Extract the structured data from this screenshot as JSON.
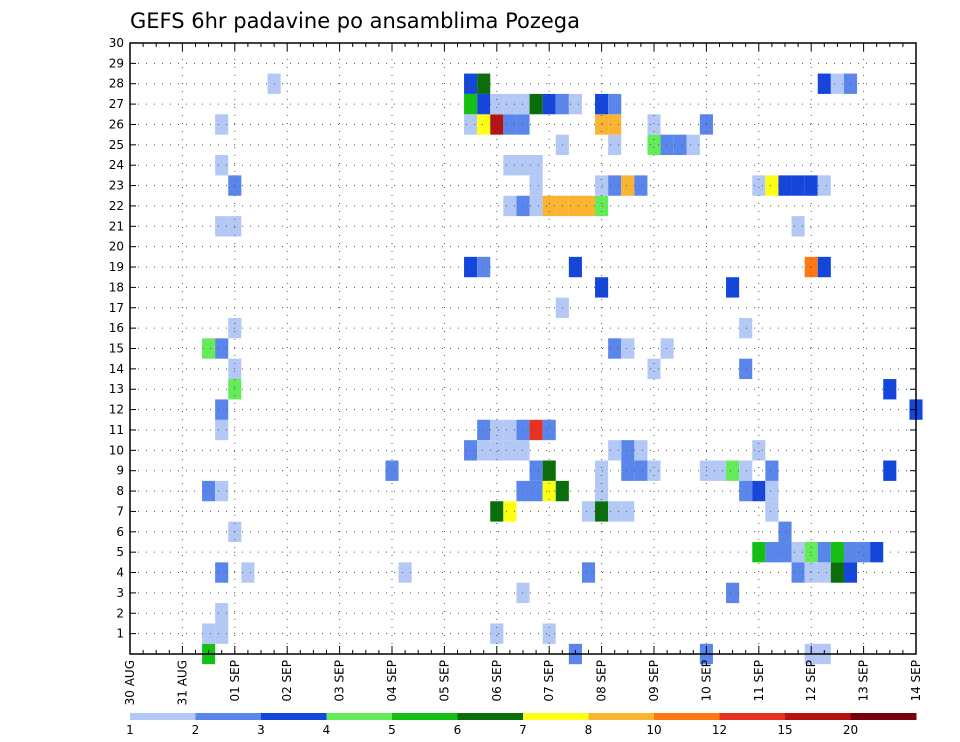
{
  "chart_data": {
    "type": "heatmap",
    "title": "GEFS 6hr padavine po ansamblima Pozega",
    "xlabel": "",
    "ylabel": "",
    "x_tick_labels": [
      "30 AUG",
      "31 AUG",
      "01 SEP",
      "02 SEP",
      "03 SEP",
      "04 SEP",
      "05 SEP",
      "06 SEP",
      "07 SEP",
      "08 SEP",
      "09 SEP",
      "10 SEP",
      "11 SEP",
      "12 SEP",
      "13 SEP",
      "14 SEP"
    ],
    "y_tick_labels": [
      "1",
      "2",
      "3",
      "4",
      "5",
      "6",
      "7",
      "8",
      "9",
      "10",
      "11",
      "12",
      "13",
      "14",
      "15",
      "16",
      "17",
      "18",
      "19",
      "20",
      "21",
      "22",
      "23",
      "24",
      "25",
      "26",
      "27",
      "28",
      "29",
      "30"
    ],
    "xlim_steps": [
      0,
      60
    ],
    "ylim_members": [
      0,
      30
    ],
    "grid": true,
    "colorbar": {
      "position": "bottom",
      "boundaries": [
        "1",
        "2",
        "3",
        "4",
        "5",
        "6",
        "7",
        "8",
        "10",
        "12",
        "15",
        "20"
      ],
      "colors": [
        "#b4c8f5",
        "#5a86eb",
        "#1446dc",
        "#64ec58",
        "#14c014",
        "#0a6e0a",
        "#ffff14",
        "#fab432",
        "#ff7814",
        "#e6321e",
        "#b41414",
        "#78000a"
      ]
    },
    "cells_note": "each cell = [time_step (6h steps from 30 AUG 00z), ensemble_member, color_class_index 0-10]",
    "cells": [
      [
        6,
        0,
        4
      ],
      [
        6,
        1,
        0
      ],
      [
        7,
        1,
        0
      ],
      [
        7,
        2,
        0
      ],
      [
        7,
        4,
        1
      ],
      [
        9,
        4,
        0
      ],
      [
        8,
        6,
        0
      ],
      [
        6,
        8,
        1
      ],
      [
        7,
        8,
        0
      ],
      [
        7,
        11,
        0
      ],
      [
        7,
        12,
        1
      ],
      [
        8,
        13,
        3
      ],
      [
        8,
        14,
        0
      ],
      [
        6,
        15,
        3
      ],
      [
        7,
        15,
        1
      ],
      [
        8,
        16,
        0
      ],
      [
        7,
        21,
        0
      ],
      [
        8,
        21,
        0
      ],
      [
        8,
        23,
        1
      ],
      [
        7,
        24,
        0
      ],
      [
        7,
        26,
        0
      ],
      [
        11,
        28,
        0
      ],
      [
        21,
        4,
        0
      ],
      [
        20,
        9,
        1
      ],
      [
        30,
        3,
        0
      ],
      [
        28,
        1,
        0
      ],
      [
        32,
        1,
        0
      ],
      [
        33,
        17,
        0
      ],
      [
        33,
        25,
        0
      ],
      [
        34,
        0,
        1
      ],
      [
        35,
        4,
        1
      ],
      [
        44,
        0,
        1
      ],
      [
        47,
        14,
        1
      ],
      [
        50,
        6,
        1
      ],
      [
        27,
        11,
        1
      ],
      [
        28,
        11,
        0
      ],
      [
        29,
        11,
        0
      ],
      [
        30,
        11,
        1
      ],
      [
        31,
        11,
        9
      ],
      [
        32,
        11,
        1
      ],
      [
        26,
        10,
        1
      ],
      [
        27,
        10,
        0
      ],
      [
        28,
        10,
        0
      ],
      [
        29,
        10,
        0
      ],
      [
        30,
        10,
        0
      ],
      [
        28,
        7,
        5
      ],
      [
        29,
        7,
        6
      ],
      [
        30,
        8,
        1
      ],
      [
        31,
        8,
        1
      ],
      [
        32,
        8,
        6
      ],
      [
        33,
        8,
        5
      ],
      [
        31,
        9,
        1
      ],
      [
        32,
        9,
        5
      ],
      [
        35,
        7,
        0
      ],
      [
        36,
        7,
        5
      ],
      [
        37,
        7,
        0
      ],
      [
        38,
        7,
        0
      ],
      [
        38,
        10,
        1
      ],
      [
        39,
        10,
        0
      ],
      [
        38,
        9,
        1
      ],
      [
        39,
        9,
        1
      ],
      [
        40,
        9,
        0
      ],
      [
        36,
        8,
        0
      ],
      [
        36,
        9,
        0
      ],
      [
        37,
        10,
        0
      ],
      [
        37,
        15,
        1
      ],
      [
        38,
        15,
        0
      ],
      [
        40,
        14,
        0
      ],
      [
        41,
        15,
        0
      ],
      [
        44,
        9,
        0
      ],
      [
        45,
        9,
        0
      ],
      [
        46,
        9,
        3
      ],
      [
        47,
        9,
        0
      ],
      [
        47,
        8,
        1
      ],
      [
        48,
        8,
        2
      ],
      [
        48,
        10,
        0
      ],
      [
        49,
        7,
        0
      ],
      [
        49,
        8,
        0
      ],
      [
        49,
        9,
        1
      ],
      [
        48,
        5,
        4
      ],
      [
        49,
        5,
        1
      ],
      [
        50,
        5,
        1
      ],
      [
        51,
        5,
        0
      ],
      [
        52,
        5,
        3
      ],
      [
        53,
        5,
        1
      ],
      [
        54,
        5,
        4
      ],
      [
        55,
        5,
        1
      ],
      [
        56,
        5,
        1
      ],
      [
        57,
        5,
        2
      ],
      [
        51,
        4,
        1
      ],
      [
        52,
        4,
        0
      ],
      [
        53,
        4,
        0
      ],
      [
        54,
        4,
        5
      ],
      [
        55,
        4,
        2
      ],
      [
        52,
        0,
        0
      ],
      [
        53,
        0,
        0
      ],
      [
        46,
        3,
        1
      ],
      [
        58,
        13,
        2
      ],
      [
        58,
        9,
        2
      ],
      [
        47,
        16,
        0
      ],
      [
        46,
        18,
        2
      ],
      [
        26,
        19,
        2
      ],
      [
        27,
        19,
        1
      ],
      [
        36,
        18,
        2
      ],
      [
        34,
        19,
        2
      ],
      [
        52,
        19,
        8
      ],
      [
        53,
        19,
        2
      ],
      [
        29,
        22,
        0
      ],
      [
        30,
        22,
        1
      ],
      [
        31,
        22,
        0
      ],
      [
        32,
        22,
        7
      ],
      [
        33,
        22,
        7
      ],
      [
        34,
        22,
        7
      ],
      [
        35,
        22,
        7
      ],
      [
        36,
        22,
        3
      ],
      [
        31,
        23,
        0
      ],
      [
        36,
        23,
        0
      ],
      [
        37,
        23,
        1
      ],
      [
        38,
        23,
        7
      ],
      [
        39,
        23,
        1
      ],
      [
        48,
        23,
        0
      ],
      [
        49,
        23,
        6
      ],
      [
        50,
        23,
        2
      ],
      [
        51,
        23,
        2
      ],
      [
        52,
        23,
        2
      ],
      [
        53,
        23,
        0
      ],
      [
        29,
        24,
        0
      ],
      [
        30,
        24,
        0
      ],
      [
        31,
        24,
        0
      ],
      [
        37,
        25,
        0
      ],
      [
        40,
        25,
        3
      ],
      [
        41,
        25,
        1
      ],
      [
        42,
        25,
        1
      ],
      [
        43,
        25,
        0
      ],
      [
        26,
        26,
        0
      ],
      [
        27,
        26,
        6
      ],
      [
        28,
        26,
        10
      ],
      [
        29,
        26,
        1
      ],
      [
        30,
        26,
        1
      ],
      [
        36,
        26,
        7
      ],
      [
        37,
        26,
        7
      ],
      [
        40,
        26,
        0
      ],
      [
        44,
        26,
        1
      ],
      [
        26,
        27,
        4
      ],
      [
        27,
        27,
        2
      ],
      [
        28,
        27,
        0
      ],
      [
        29,
        27,
        0
      ],
      [
        30,
        27,
        0
      ],
      [
        31,
        27,
        5
      ],
      [
        32,
        27,
        2
      ],
      [
        33,
        27,
        1
      ],
      [
        34,
        27,
        0
      ],
      [
        36,
        27,
        2
      ],
      [
        37,
        27,
        1
      ],
      [
        26,
        28,
        2
      ],
      [
        27,
        28,
        5
      ],
      [
        53,
        28,
        2
      ],
      [
        54,
        28,
        0
      ],
      [
        55,
        28,
        1
      ],
      [
        51,
        21,
        0
      ],
      [
        60,
        12,
        2
      ]
    ]
  }
}
